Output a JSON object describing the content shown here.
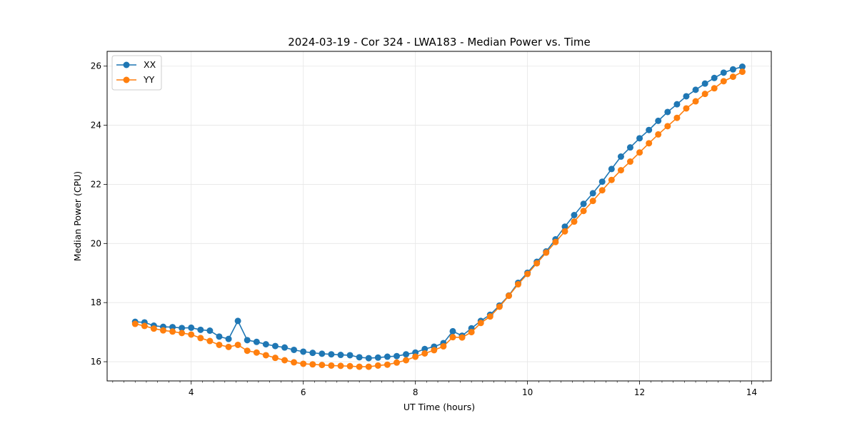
{
  "chart_data": {
    "type": "line",
    "title": "2024-03-19 - Cor 324 - LWA183 - Median Power vs. Time",
    "xlabel": "UT Time (hours)",
    "ylabel": "Median Power (CPU)",
    "xlim": [
      2.5,
      14.35
    ],
    "ylim": [
      15.35,
      26.5
    ],
    "xticks": [
      4,
      6,
      8,
      10,
      12,
      14
    ],
    "xticks_minor_step": 0.2,
    "yticks": [
      16,
      18,
      20,
      22,
      24,
      26
    ],
    "grid": true,
    "legend_position": "top-left",
    "x": [
      3.0,
      3.167,
      3.333,
      3.5,
      3.667,
      3.833,
      4.0,
      4.167,
      4.333,
      4.5,
      4.667,
      4.833,
      5.0,
      5.167,
      5.333,
      5.5,
      5.667,
      5.833,
      6.0,
      6.167,
      6.333,
      6.5,
      6.667,
      6.833,
      7.0,
      7.167,
      7.333,
      7.5,
      7.667,
      7.833,
      8.0,
      8.167,
      8.333,
      8.5,
      8.667,
      8.833,
      9.0,
      9.167,
      9.333,
      9.5,
      9.667,
      9.833,
      10.0,
      10.167,
      10.333,
      10.5,
      10.667,
      10.833,
      11.0,
      11.167,
      11.333,
      11.5,
      11.667,
      11.833,
      12.0,
      12.167,
      12.333,
      12.5,
      12.667,
      12.833,
      13.0,
      13.167,
      13.333,
      13.5,
      13.667,
      13.833
    ],
    "series": [
      {
        "name": "XX",
        "color": "#1f77b4",
        "values": [
          17.35,
          17.33,
          17.22,
          17.18,
          17.17,
          17.14,
          17.15,
          17.08,
          17.05,
          16.85,
          16.77,
          17.38,
          16.73,
          16.67,
          16.59,
          16.53,
          16.48,
          16.4,
          16.34,
          16.3,
          16.27,
          16.25,
          16.23,
          16.22,
          16.15,
          16.12,
          16.14,
          16.17,
          16.19,
          16.25,
          16.31,
          16.43,
          16.51,
          16.63,
          17.03,
          16.88,
          17.13,
          17.38,
          17.59,
          17.9,
          18.24,
          18.67,
          19.01,
          19.38,
          19.73,
          20.14,
          20.57,
          20.96,
          21.34,
          21.7,
          22.09,
          22.52,
          22.94,
          23.25,
          23.56,
          23.84,
          24.15,
          24.45,
          24.71,
          24.98,
          25.2,
          25.41,
          25.6,
          25.78,
          25.89,
          25.98
        ]
      },
      {
        "name": "YY",
        "color": "#ff7f0e",
        "values": [
          17.28,
          17.21,
          17.12,
          17.06,
          17.02,
          16.97,
          16.92,
          16.8,
          16.7,
          16.57,
          16.5,
          16.57,
          16.37,
          16.31,
          16.22,
          16.13,
          16.05,
          15.98,
          15.93,
          15.91,
          15.89,
          15.87,
          15.86,
          15.85,
          15.83,
          15.83,
          15.87,
          15.9,
          15.97,
          16.05,
          16.17,
          16.28,
          16.39,
          16.52,
          16.83,
          16.82,
          17.0,
          17.31,
          17.53,
          17.86,
          18.23,
          18.62,
          18.97,
          19.33,
          19.69,
          20.05,
          20.41,
          20.74,
          21.1,
          21.44,
          21.8,
          22.15,
          22.48,
          22.77,
          23.08,
          23.39,
          23.69,
          23.97,
          24.25,
          24.57,
          24.81,
          25.06,
          25.25,
          25.49,
          25.64,
          25.81
        ]
      }
    ]
  }
}
